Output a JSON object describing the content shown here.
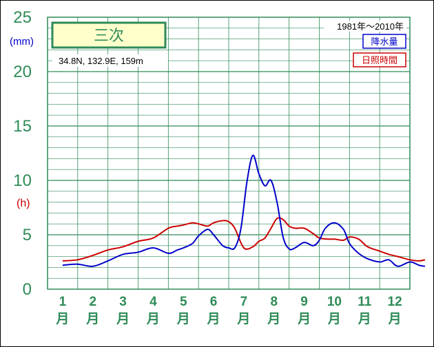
{
  "chart_data": {
    "type": "line",
    "title": "三次",
    "subtitle": "34.8N,  132.9E,  159m",
    "period": "1981年〜2010年",
    "ylabel_left_unit_precip": "(mm)",
    "ylabel_left_unit_sun": "(h)",
    "yticks": [
      "0",
      "5",
      "10",
      "15",
      "20",
      "25"
    ],
    "ylim": [
      0,
      25
    ],
    "grid": true,
    "legend_placement": "top-right",
    "months": [
      "1",
      "2",
      "3",
      "4",
      "5",
      "6",
      "7",
      "8",
      "9",
      "10",
      "11",
      "12"
    ],
    "month_suffix": "月",
    "series": [
      {
        "name": "降水量",
        "color": "#0000cc",
        "x": [
          0.5,
          1.0,
          1.5,
          2.0,
          2.5,
          3.0,
          3.5,
          4.0,
          4.3,
          4.5,
          4.8,
          5.0,
          5.3,
          5.5,
          5.8,
          6.0,
          6.2,
          6.4,
          6.6,
          6.8,
          7.0,
          7.2,
          7.4,
          7.6,
          7.8,
          8.0,
          8.2,
          8.5,
          8.8,
          9.0,
          9.2,
          9.5,
          9.8,
          10.0,
          10.3,
          10.6,
          11.0,
          11.3,
          11.6,
          12.0,
          12.3,
          12.5
        ],
        "y": [
          2.2,
          2.3,
          2.1,
          2.6,
          3.2,
          3.4,
          3.8,
          3.3,
          3.6,
          3.8,
          4.2,
          4.9,
          5.5,
          5.0,
          4.0,
          3.8,
          3.8,
          5.5,
          9.8,
          12.3,
          10.6,
          9.5,
          10.0,
          8.0,
          4.8,
          3.7,
          3.8,
          4.3,
          4.0,
          4.5,
          5.6,
          6.1,
          5.5,
          4.2,
          3.3,
          2.8,
          2.5,
          2.7,
          2.1,
          2.5,
          2.2,
          2.1
        ]
      },
      {
        "name": "日照時間",
        "color": "#cc0000",
        "x": [
          0.5,
          1.0,
          1.5,
          2.0,
          2.5,
          3.0,
          3.5,
          4.0,
          4.3,
          4.5,
          4.8,
          5.0,
          5.3,
          5.5,
          5.8,
          6.0,
          6.2,
          6.5,
          6.8,
          7.0,
          7.2,
          7.4,
          7.6,
          7.8,
          8.0,
          8.2,
          8.5,
          8.8,
          9.0,
          9.3,
          9.5,
          9.8,
          10.0,
          10.3,
          10.6,
          11.0,
          11.3,
          11.6,
          12.0,
          12.3,
          12.5
        ],
        "y": [
          2.6,
          2.7,
          3.1,
          3.6,
          3.9,
          4.4,
          4.7,
          5.6,
          5.8,
          5.9,
          6.1,
          6.0,
          5.8,
          6.1,
          6.3,
          6.2,
          5.6,
          3.8,
          3.9,
          4.4,
          4.7,
          5.6,
          6.5,
          6.4,
          5.8,
          5.6,
          5.6,
          5.1,
          4.7,
          4.6,
          4.6,
          4.5,
          4.8,
          4.6,
          3.9,
          3.5,
          3.2,
          3.0,
          2.7,
          2.6,
          2.7
        ]
      }
    ]
  }
}
